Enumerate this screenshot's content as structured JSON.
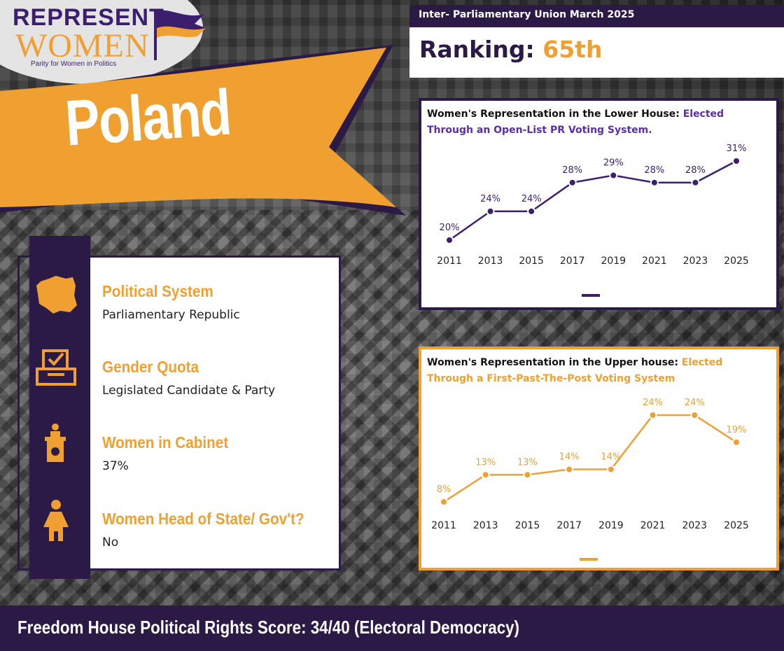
{
  "logo": {
    "line1": "REPRESENT",
    "line2": "WOMEN",
    "tagline": "Parity for Women in Politics"
  },
  "country": "Poland",
  "ranking": {
    "source": "Inter- Parliamentary Union March 2025",
    "label": "Ranking:",
    "value": "65th"
  },
  "info": {
    "items": [
      {
        "label": "Political System",
        "value": "Parliamentary Republic",
        "icon": "poland-map-icon"
      },
      {
        "label": "Gender Quota",
        "value": "Legislated Candidate & Party",
        "icon": "ballot-box-icon"
      },
      {
        "label": "Women in Cabinet",
        "value": "37%",
        "icon": "podium-icon"
      },
      {
        "label": "Women Head of State/ Gov't?",
        "value": "No",
        "icon": "woman-icon"
      }
    ]
  },
  "footer": {
    "text": "Freedom House Political Rights Score: 34/40 (Electoral Democracy)"
  },
  "colors": {
    "purple": "#2b1a45",
    "violet": "#3b1f6e",
    "orange": "#f0a030"
  },
  "chart_data": [
    {
      "type": "line",
      "title": "Women's Representation in the Lower House:",
      "subtitle": "Elected Through an Open-List PR Voting System.",
      "x": [
        "2011",
        "2013",
        "2015",
        "2017",
        "2019",
        "2021",
        "2023",
        "2025"
      ],
      "values": [
        20,
        24,
        24,
        28,
        29,
        28,
        28,
        31
      ],
      "labels": [
        "20%",
        "24%",
        "24%",
        "28%",
        "29%",
        "28%",
        "28%",
        "31%"
      ],
      "ylim": [
        20,
        31
      ],
      "color": "#3b1f6e",
      "grid": false
    },
    {
      "type": "line",
      "title": "Women's Representation in the Upper house:",
      "subtitle": "Elected Through a First-Past-The-Post Voting System",
      "x": [
        "2011",
        "2013",
        "2015",
        "2017",
        "2019",
        "2021",
        "2023",
        "2025"
      ],
      "values": [
        8,
        13,
        13,
        14,
        14,
        24,
        24,
        19
      ],
      "labels": [
        "8%",
        "13%",
        "13%",
        "14%",
        "14%",
        "24%",
        "24%",
        "19%"
      ],
      "ylim": [
        8,
        24
      ],
      "color": "#f0a030",
      "grid": false
    }
  ]
}
